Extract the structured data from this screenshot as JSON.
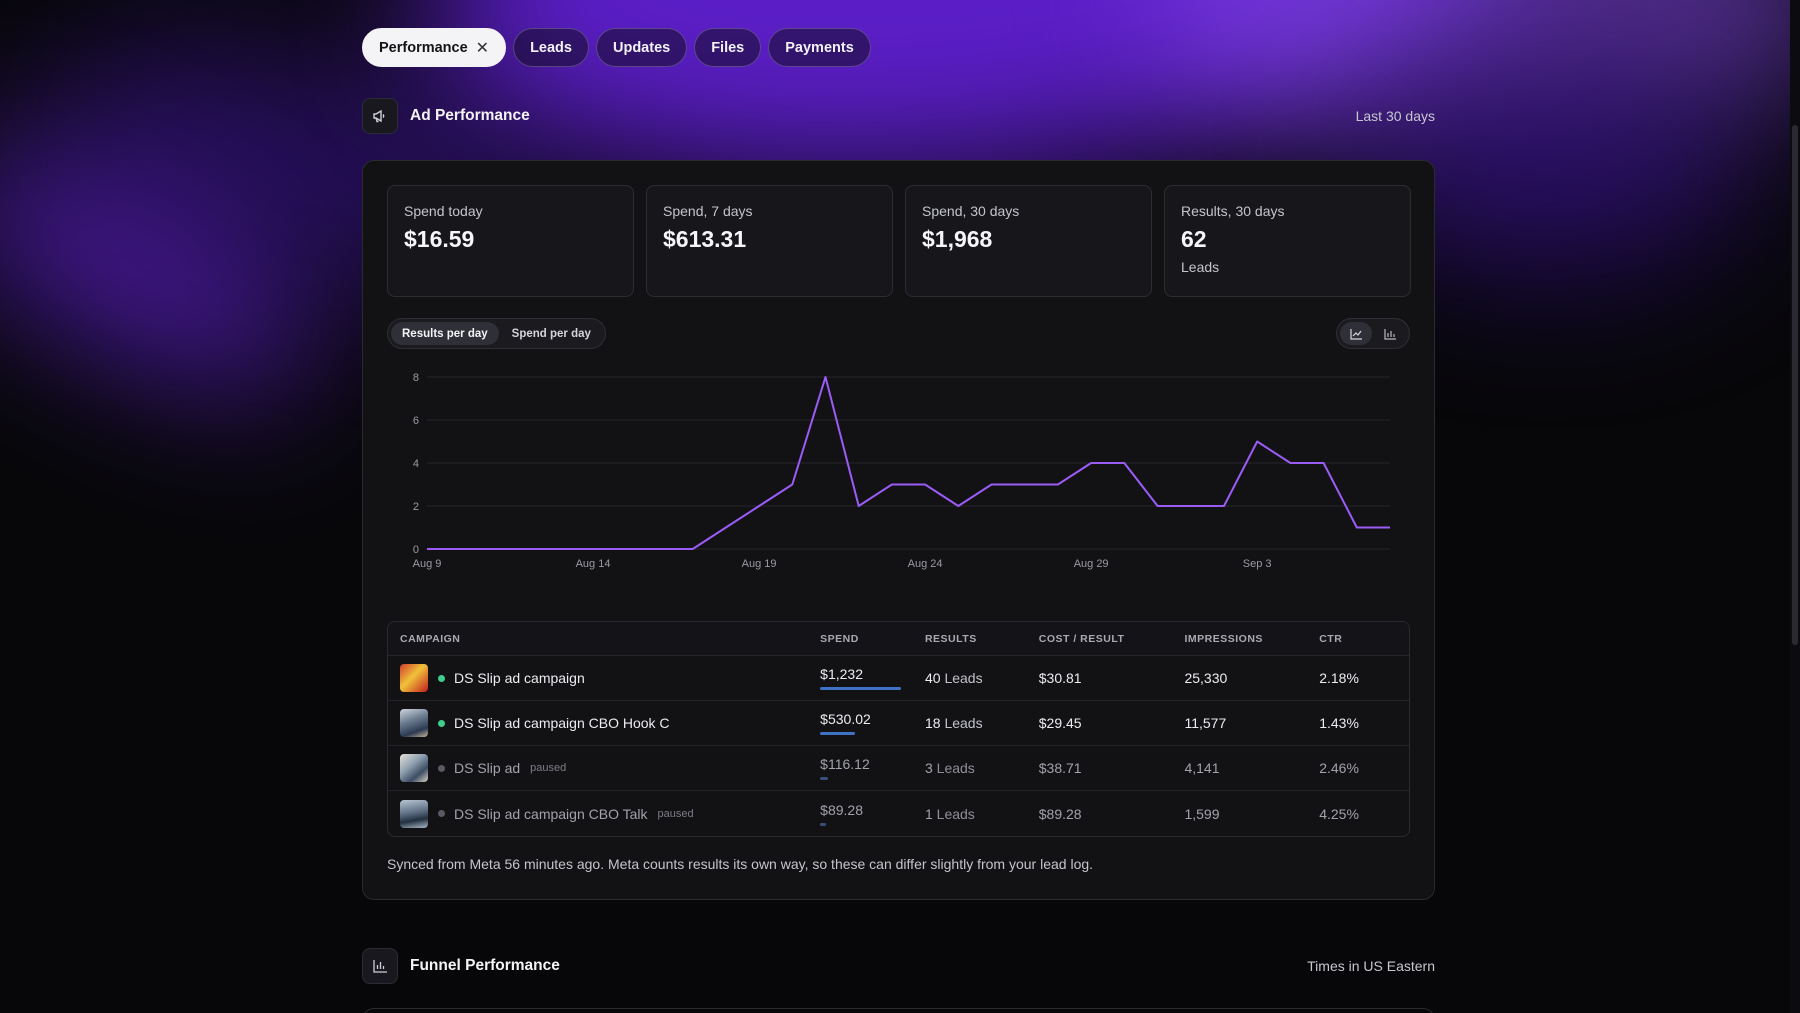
{
  "tabs": [
    {
      "label": "Performance",
      "active": true
    },
    {
      "label": "Leads"
    },
    {
      "label": "Updates"
    },
    {
      "label": "Files"
    },
    {
      "label": "Payments"
    }
  ],
  "ad_section": {
    "title": "Ad Performance",
    "icon": "megaphone-icon",
    "range": "Last 30 days"
  },
  "stats": [
    {
      "label": "Spend today",
      "value": "$16.59"
    },
    {
      "label": "Spend, 7 days",
      "value": "$613.31"
    },
    {
      "label": "Spend, 30 days",
      "value": "$1,968"
    },
    {
      "label": "Results, 30 days",
      "value": "62",
      "sub": "Leads"
    }
  ],
  "chart_toggle": {
    "results": "Results per day",
    "spend": "Spend per day"
  },
  "chart_data": {
    "type": "line",
    "title": "",
    "xlabel": "",
    "ylabel": "",
    "ylim": [
      0,
      8
    ],
    "yticks": [
      0,
      2,
      4,
      6,
      8
    ],
    "x_tick_labels": [
      "Aug 9",
      "Aug 14",
      "Aug 19",
      "Aug 24",
      "Aug 29",
      "Sep 3"
    ],
    "x": [
      "Aug 9",
      "Aug 10",
      "Aug 11",
      "Aug 12",
      "Aug 13",
      "Aug 14",
      "Aug 15",
      "Aug 16",
      "Aug 17",
      "Aug 18",
      "Aug 19",
      "Aug 20",
      "Aug 21",
      "Aug 22",
      "Aug 23",
      "Aug 24",
      "Aug 25",
      "Aug 26",
      "Aug 27",
      "Aug 28",
      "Aug 29",
      "Aug 30",
      "Aug 31",
      "Sep 1",
      "Sep 2",
      "Sep 3",
      "Sep 4",
      "Sep 5",
      "Sep 6",
      "Sep 7"
    ],
    "series": [
      {
        "values": [
          0,
          0,
          0,
          0,
          0,
          0,
          0,
          0,
          0,
          1,
          2,
          3,
          8,
          2,
          3,
          3,
          2,
          3,
          3,
          3,
          4,
          4,
          2,
          2,
          2,
          5,
          4,
          4,
          1,
          1
        ],
        "color": "#9b5cf6"
      }
    ],
    "grid": true
  },
  "table": {
    "headers": {
      "campaign": "CAMPAIGN",
      "spend": "SPEND",
      "results": "RESULTS",
      "cost": "COST / RESULT",
      "impressions": "IMPRESSIONS",
      "ctr": "CTR"
    },
    "rows": [
      {
        "name": "DS Slip ad campaign",
        "status": "",
        "spend": "$1,232",
        "spend_share": 1.0,
        "results": "40",
        "unit": "Leads",
        "cost": "$30.81",
        "impressions": "25,330",
        "ctr": "2.18%",
        "active": true
      },
      {
        "name": "DS Slip ad campaign CBO Hook C",
        "status": "",
        "spend": "$530.02",
        "spend_share": 0.43,
        "results": "18",
        "unit": "Leads",
        "cost": "$29.45",
        "impressions": "11,577",
        "ctr": "1.43%",
        "active": true
      },
      {
        "name": "DS Slip ad",
        "status": "paused",
        "spend": "$116.12",
        "spend_share": 0.094,
        "results": "3",
        "unit": "Leads",
        "cost": "$38.71",
        "impressions": "4,141",
        "ctr": "2.46%",
        "active": false
      },
      {
        "name": "DS Slip ad campaign CBO Talk",
        "status": "paused",
        "spend": "$89.28",
        "spend_share": 0.072,
        "results": "1",
        "unit": "Leads",
        "cost": "$89.28",
        "impressions": "1,599",
        "ctr": "4.25%",
        "active": false
      }
    ]
  },
  "footnote": "Synced from Meta 56 minutes ago. Meta counts results its own way, so these can differ slightly from your lead log.",
  "funnel_section": {
    "title": "Funnel Performance",
    "icon": "bar-chart-icon",
    "right": "Times in US Eastern"
  },
  "colors": {
    "accent_line": "#9b5cf6",
    "active_dot": "#3ecf8e",
    "paused_dot": "#5a5a64",
    "spend_bar": "#3f72c4"
  }
}
